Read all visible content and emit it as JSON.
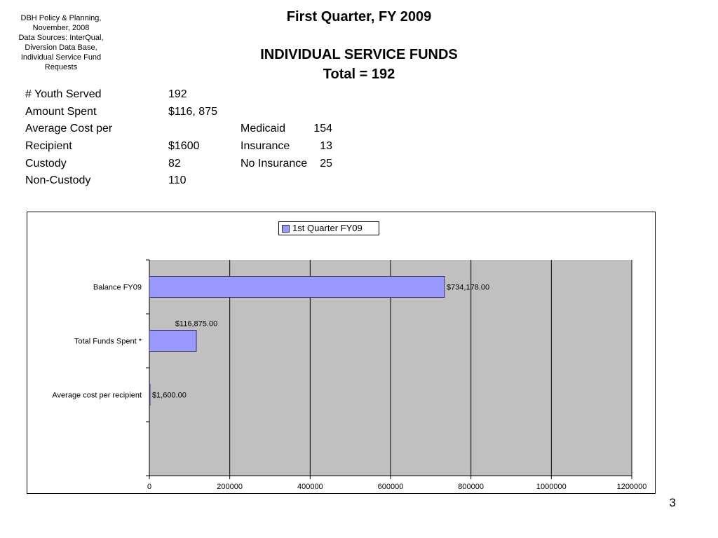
{
  "header": {
    "source_note": [
      "DBH Policy & Planning,",
      "November, 2008",
      "Data Sources: InterQual,",
      "Diversion Data Base,",
      "Individual Service Fund",
      "Requests"
    ],
    "title": "First Quarter, FY 2009",
    "subtitle": "INDIVIDUAL SERVICE FUNDS",
    "total": "Total = 192"
  },
  "summary": {
    "rows": [
      {
        "label": "# Youth Served",
        "value": "192"
      },
      {
        "label": "Amount Spent",
        "value": "$116, 875"
      },
      {
        "label": "Average Cost per"
      },
      {
        "label": "Recipient",
        "value": "$1600"
      },
      {
        "label": "Custody",
        "value": "82"
      },
      {
        "label": "Non-Custody",
        "value": "110"
      }
    ],
    "insurance": [
      {
        "label": "Medicaid",
        "value": "154"
      },
      {
        "label": "Insurance",
        "value": "13"
      },
      {
        "label": "No Insurance",
        "value": "25"
      }
    ]
  },
  "page_number": "3",
  "chart_data": {
    "type": "bar",
    "orientation": "horizontal",
    "categories": [
      "Balance FY09",
      "Total Funds Spent *",
      "Average cost per recipient",
      ""
    ],
    "series": [
      {
        "name": "1st Quarter FY09",
        "values": [
          734178,
          116875,
          1600,
          null
        ]
      }
    ],
    "data_labels": [
      "$734,178.00",
      "$116,875.00",
      "$1,600.00"
    ],
    "xlim": [
      0,
      1200000
    ],
    "xticks": [
      0,
      200000,
      400000,
      600000,
      800000,
      1000000,
      1200000
    ],
    "grid": true,
    "legend_position": "top",
    "colors": {
      "bar": "#9999ff",
      "bar_border": "#333366",
      "plot_background": "#c0c0c0",
      "gridline": "#000000"
    }
  }
}
